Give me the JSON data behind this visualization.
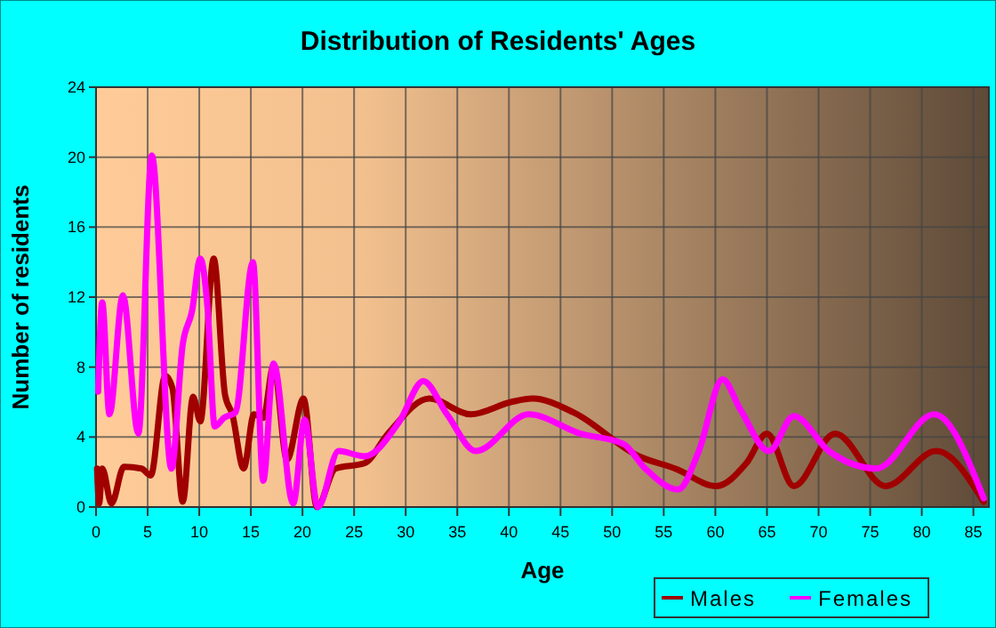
{
  "chart_data": {
    "type": "line",
    "title": "Distribution of Residents' Ages",
    "xlabel": "Age",
    "ylabel": "Number of residents",
    "xlim": [
      0,
      86.5
    ],
    "xticks": [
      0,
      5,
      10,
      15,
      20,
      25,
      30,
      35,
      40,
      45,
      50,
      55,
      60,
      65,
      70,
      75,
      80,
      85
    ],
    "ylim": [
      0,
      24
    ],
    "yticks": [
      0,
      4,
      8,
      12,
      16,
      20,
      24
    ],
    "grid": true,
    "legend": "bottom right",
    "line_style": "solid",
    "series": [
      {
        "name": "Males",
        "color": "#a00000",
        "x": [
          0.1,
          0.3,
          0.6,
          1.5,
          2.7,
          4.4,
          5.3,
          6.7,
          7.4,
          8.4,
          9.4,
          10.1,
          11.4,
          12.5,
          13.2,
          14.3,
          15.3,
          16.2,
          17.2,
          18.5,
          20.1,
          21.4,
          23.2,
          26,
          28.3,
          32.3,
          36.3,
          40.2,
          42.3,
          46.3,
          52.6,
          56.1,
          60.1,
          63,
          65,
          67.6,
          71.6,
          76.5,
          81.4,
          86
        ],
        "values": [
          2.2,
          0.2,
          2.2,
          0.2,
          2.3,
          2.2,
          1.8,
          7.5,
          6.8,
          0.3,
          6.3,
          4.9,
          14.2,
          6.4,
          5.3,
          2.2,
          5.3,
          5.1,
          8.1,
          2.7,
          6.2,
          0,
          2.2,
          2.5,
          4.2,
          6.2,
          5.3,
          6,
          6.2,
          5.4,
          2.9,
          2.2,
          1.2,
          2.5,
          4.2,
          1.2,
          4.2,
          1.2,
          3.2,
          0.3
        ]
      },
      {
        "name": "Females",
        "color": "#ff00ff",
        "x": [
          0.2,
          0.6,
          1.3,
          2.6,
          4.1,
          5.4,
          7.3,
          8.4,
          9.3,
          10.1,
          10.8,
          11.5,
          12.4,
          13.5,
          15.2,
          16.2,
          17.2,
          19.1,
          20.2,
          21.5,
          23.5,
          26,
          29.4,
          31.7,
          34,
          36.8,
          41.9,
          46.9,
          51.1,
          53.2,
          56.4,
          58.4,
          60.7,
          62.4,
          65.2,
          67.6,
          71,
          75.6,
          81.2,
          86
        ],
        "values": [
          6.6,
          11.7,
          5.3,
          12.1,
          4.2,
          20.1,
          2.2,
          9.3,
          11.2,
          14.2,
          11.4,
          4.6,
          5.1,
          5.4,
          14,
          1.5,
          8.2,
          0.2,
          5,
          0,
          3.2,
          2.9,
          4.9,
          7.2,
          5.3,
          3.2,
          5.3,
          4.2,
          3.6,
          2.2,
          1,
          3.2,
          7.3,
          5.6,
          3.2,
          5.2,
          3.2,
          2.2,
          5.3,
          0.5
        ]
      }
    ]
  }
}
